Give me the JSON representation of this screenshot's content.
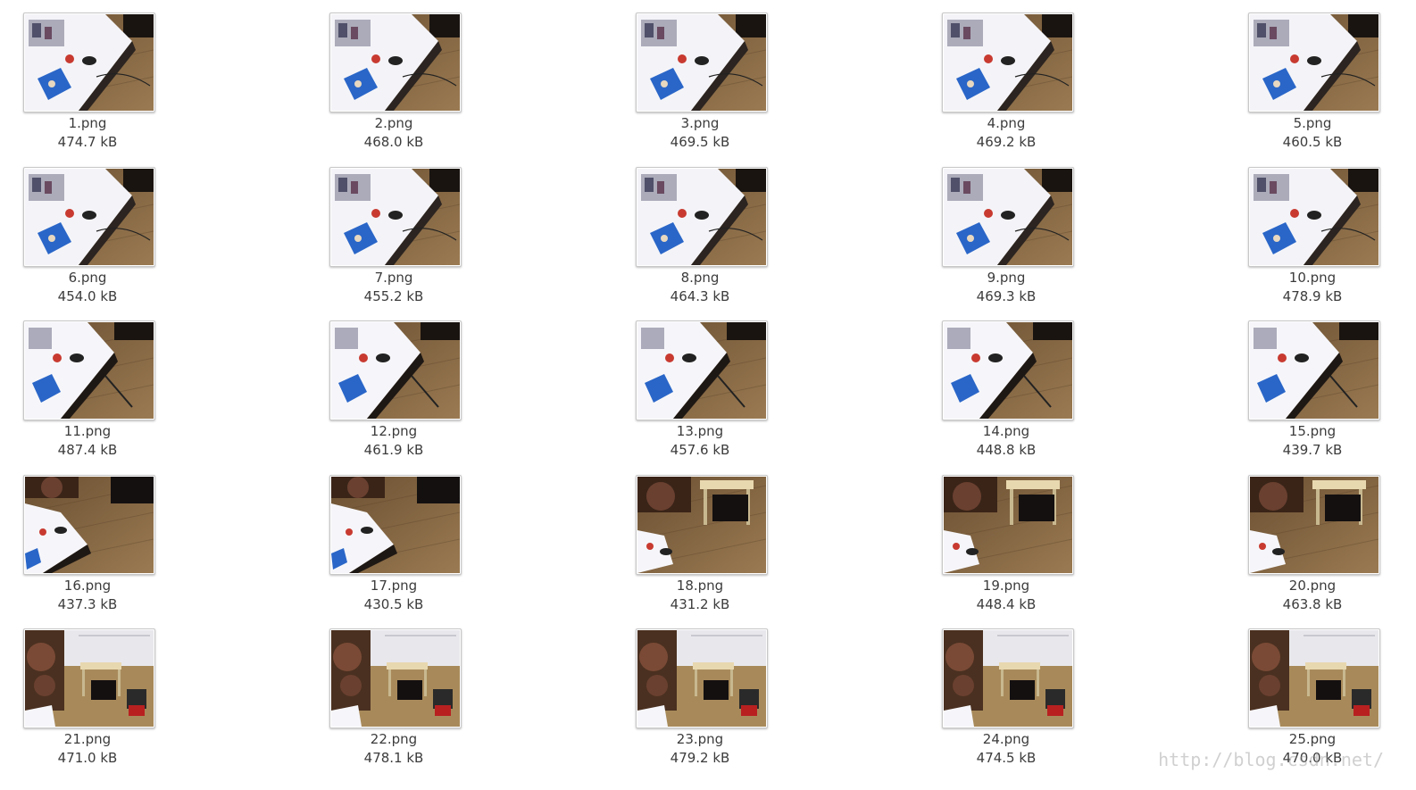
{
  "files": [
    {
      "name": "1.png",
      "size": "474.7 kB",
      "scene": "desk"
    },
    {
      "name": "2.png",
      "size": "468.0 kB",
      "scene": "desk"
    },
    {
      "name": "3.png",
      "size": "469.5 kB",
      "scene": "desk"
    },
    {
      "name": "4.png",
      "size": "469.2 kB",
      "scene": "desk"
    },
    {
      "name": "5.png",
      "size": "460.5 kB",
      "scene": "desk"
    },
    {
      "name": "6.png",
      "size": "454.0 kB",
      "scene": "desk"
    },
    {
      "name": "7.png",
      "size": "455.2 kB",
      "scene": "desk"
    },
    {
      "name": "8.png",
      "size": "464.3 kB",
      "scene": "desk"
    },
    {
      "name": "9.png",
      "size": "469.3 kB",
      "scene": "desk"
    },
    {
      "name": "10.png",
      "size": "478.9 kB",
      "scene": "desk"
    },
    {
      "name": "11.png",
      "size": "487.4 kB",
      "scene": "desk-floor"
    },
    {
      "name": "12.png",
      "size": "461.9 kB",
      "scene": "desk-floor"
    },
    {
      "name": "13.png",
      "size": "457.6 kB",
      "scene": "desk-floor"
    },
    {
      "name": "14.png",
      "size": "448.8 kB",
      "scene": "desk-floor"
    },
    {
      "name": "15.png",
      "size": "439.7 kB",
      "scene": "desk-floor"
    },
    {
      "name": "16.png",
      "size": "437.3 kB",
      "scene": "floor"
    },
    {
      "name": "17.png",
      "size": "430.5 kB",
      "scene": "floor"
    },
    {
      "name": "18.png",
      "size": "431.2 kB",
      "scene": "floor-table"
    },
    {
      "name": "19.png",
      "size": "448.4 kB",
      "scene": "floor-table"
    },
    {
      "name": "20.png",
      "size": "463.8 kB",
      "scene": "floor-table"
    },
    {
      "name": "21.png",
      "size": "471.0 kB",
      "scene": "room"
    },
    {
      "name": "22.png",
      "size": "478.1 kB",
      "scene": "room"
    },
    {
      "name": "23.png",
      "size": "479.2 kB",
      "scene": "room"
    },
    {
      "name": "24.png",
      "size": "474.5 kB",
      "scene": "room"
    },
    {
      "name": "25.png",
      "size": "470.0 kB",
      "scene": "room"
    }
  ],
  "watermark": "http://blog.csdn.net/"
}
